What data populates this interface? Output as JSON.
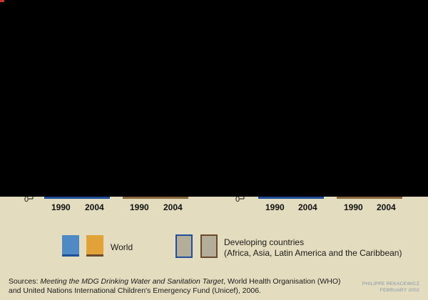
{
  "chart_data": {
    "type": "bar",
    "groups": [
      {
        "name": "World",
        "categories": [
          "1990",
          "2004"
        ]
      },
      {
        "name": "World",
        "categories": [
          "1990",
          "2004"
        ]
      },
      {
        "name": "Developing countries",
        "categories": [
          "1990",
          "2004"
        ]
      },
      {
        "name": "Developing countries",
        "categories": [
          "1990",
          "2004"
        ]
      }
    ],
    "y_axis_zero_label": "0",
    "legend": {
      "world": "World",
      "developing_line1": "Developing countries",
      "developing_line2": "(Africa, Asia, Latin America and the Caribbean)"
    },
    "colors": {
      "world_blue": "#4f8ac4",
      "world_orange": "#e2a23a",
      "developing_fill": "#b3ad9a",
      "blue_outline": "#1f4e9a",
      "brown_outline": "#6a4a2a",
      "background": "#e3dcbf"
    },
    "legend_placement": "bottom"
  },
  "sources": {
    "prefix": "Sources: ",
    "title": "Meeting the MDG Drinking Water and Sanitation Target",
    "rest_line1": ", World Health Organisation (WHO)",
    "line2": "and United Nations International Children's Emergency Fund (Unicef), 2006."
  },
  "credit": {
    "author": "PHILIPPE REKACEWICZ",
    "date": "FEBRUARY 2002"
  }
}
